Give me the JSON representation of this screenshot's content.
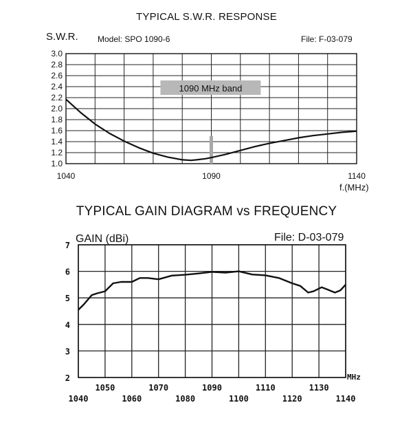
{
  "chart_data": [
    {
      "type": "line",
      "title": "TYPICAL S.W.R. RESPONSE",
      "ylabel": "S.W.R.",
      "xlabel": "f.(MHz)",
      "model_text": "Model:  SPO 1090-6",
      "file_text": "File:  F-03-079",
      "band_label": "1090 MHz band",
      "band_marker_x": 1090,
      "xlim": [
        1040,
        1140
      ],
      "ylim": [
        1.0,
        3.0
      ],
      "x_ticks": [
        "1040",
        "1090",
        "1140"
      ],
      "y_ticks": [
        "3.0",
        "2.8",
        "2.6",
        "2.4",
        "2.2",
        "2.0",
        "1.8",
        "1.6",
        "1.4",
        "1.2",
        "1.0"
      ],
      "grid": true,
      "series": [
        {
          "x": [
            1040,
            1045,
            1050,
            1055,
            1060,
            1065,
            1070,
            1075,
            1080,
            1083,
            1085,
            1088,
            1090,
            1095,
            1100,
            1105,
            1110,
            1115,
            1120,
            1125,
            1130,
            1135,
            1140
          ],
          "values": [
            2.17,
            1.93,
            1.72,
            1.55,
            1.41,
            1.29,
            1.19,
            1.12,
            1.07,
            1.06,
            1.07,
            1.09,
            1.11,
            1.17,
            1.24,
            1.31,
            1.37,
            1.42,
            1.47,
            1.51,
            1.54,
            1.57,
            1.59
          ]
        }
      ]
    },
    {
      "type": "line",
      "title": "TYPICAL GAIN DIAGRAM vs FREQUENCY",
      "ylabel": "GAIN (dBi)",
      "xlabel": "MHz",
      "file_text": "File:  D-03-079",
      "xlim": [
        1040,
        1140
      ],
      "ylim": [
        2,
        7
      ],
      "x_ticks_upper": [
        "1050",
        "1070",
        "1090",
        "1110",
        "1130"
      ],
      "x_ticks_lower": [
        "1040",
        "1060",
        "1080",
        "1100",
        "1120",
        "1140"
      ],
      "y_ticks": [
        "7",
        "6",
        "5",
        "4",
        "3",
        "2"
      ],
      "grid": true,
      "series": [
        {
          "x": [
            1040,
            1042,
            1045,
            1047,
            1050,
            1053,
            1056,
            1060,
            1063,
            1066,
            1070,
            1075,
            1080,
            1085,
            1090,
            1095,
            1100,
            1105,
            1110,
            1115,
            1120,
            1123,
            1126,
            1128,
            1131,
            1133,
            1136,
            1138,
            1140
          ],
          "values": [
            4.55,
            4.75,
            5.1,
            5.17,
            5.25,
            5.55,
            5.6,
            5.6,
            5.75,
            5.75,
            5.7,
            5.84,
            5.87,
            5.92,
            5.98,
            5.95,
            6.0,
            5.88,
            5.85,
            5.75,
            5.55,
            5.45,
            5.2,
            5.25,
            5.4,
            5.32,
            5.2,
            5.28,
            5.5
          ]
        }
      ]
    }
  ]
}
